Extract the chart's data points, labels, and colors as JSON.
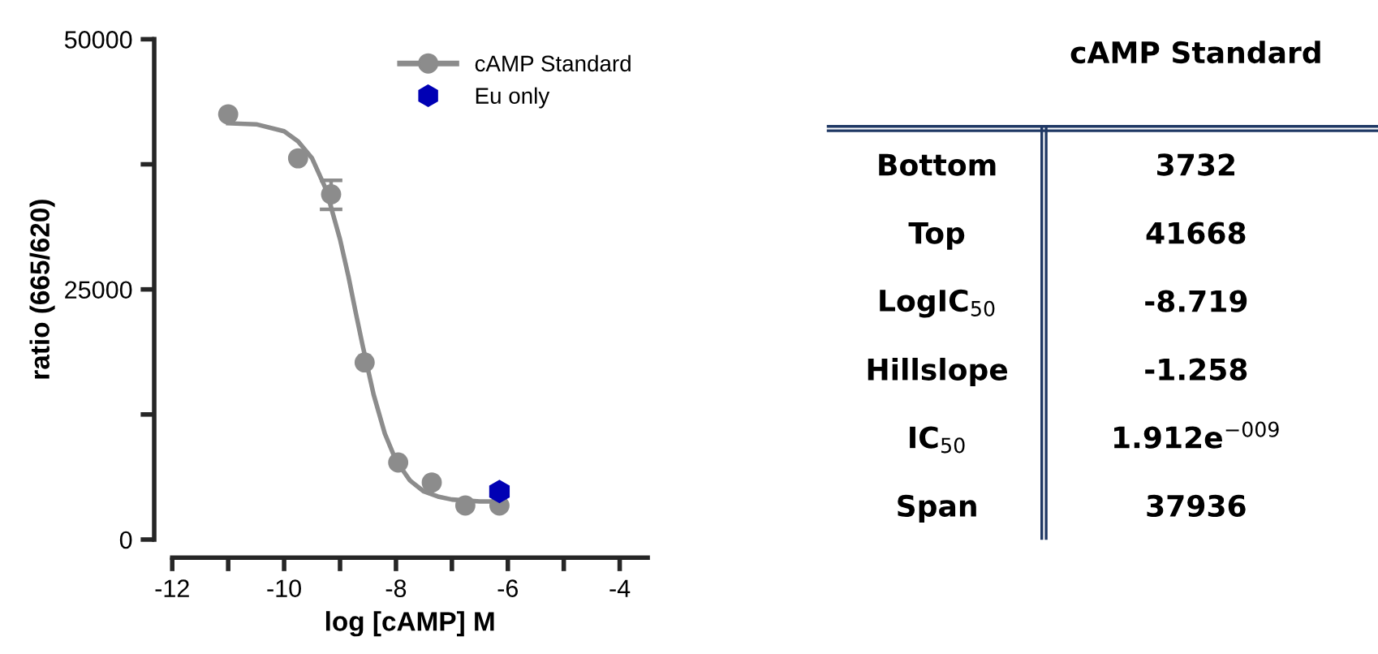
{
  "chart_data": [
    {
      "type": "scatter",
      "xlabel": "log [cAMP] M",
      "ylabel": "ratio (665/620)",
      "xlim": [
        -12,
        -3.5
      ],
      "ylim": [
        0,
        50000
      ],
      "xticks": [
        -12,
        {
          "value": -11,
          "label": null
        },
        -10,
        {
          "value": -9,
          "label": null
        },
        -8,
        {
          "value": -7,
          "label": null
        },
        -6,
        {
          "value": -5,
          "label": null
        },
        -4
      ],
      "yticks": [
        0,
        {
          "value": 12500,
          "label": null
        },
        25000,
        {
          "value": 37500,
          "label": null
        },
        50000
      ],
      "grid": false,
      "legend": "top right",
      "series": [
        {
          "name": "cAMP Standard",
          "color": "#8c8c8c",
          "marker": "circle",
          "x": [
            -11,
            -9.75,
            -9.16,
            -8.56,
            -7.96,
            -7.36,
            -6.76,
            -6.15
          ],
          "values": [
            42500,
            38100,
            34500,
            17700,
            7700,
            5700,
            3400,
            3400
          ],
          "errors": [
            null,
            null,
            [
              33000,
              35900
            ],
            null,
            null,
            null,
            null,
            null
          ]
        },
        {
          "type": "line",
          "color": "#8c8c8c",
          "marker": "none",
          "x": [
            -11,
            -10.5,
            -10,
            -9.75,
            -9.5,
            -9.25,
            -9,
            -8.85,
            -8.72,
            -8.6,
            -8.4,
            -8.2,
            -8,
            -7.75,
            -7.5,
            -7.25,
            -7,
            -6.5,
            -6.15
          ],
          "values": [
            41600,
            41500,
            40800,
            39800,
            38100,
            35000,
            30000,
            26300,
            22700,
            19500,
            14500,
            10600,
            7900,
            5900,
            4800,
            4300,
            4000,
            3800,
            3800
          ]
        },
        {
          "name": "Eu only",
          "color": "#0000b4",
          "x": [
            -6.15
          ],
          "values": [
            4800
          ]
        }
      ]
    },
    {
      "type": "other",
      "title": "cAMP Standard",
      "categories": [
        "Bottom",
        "Top",
        "LogIC$_{50}$",
        "Hillslope",
        "IC$_{50}$",
        "Span"
      ],
      "value_labels": [
        "3732",
        "41668",
        "-8.719",
        "-1.258",
        "1.912e$^{−009}$",
        "37936"
      ],
      "color": "#1f3864"
    }
  ]
}
